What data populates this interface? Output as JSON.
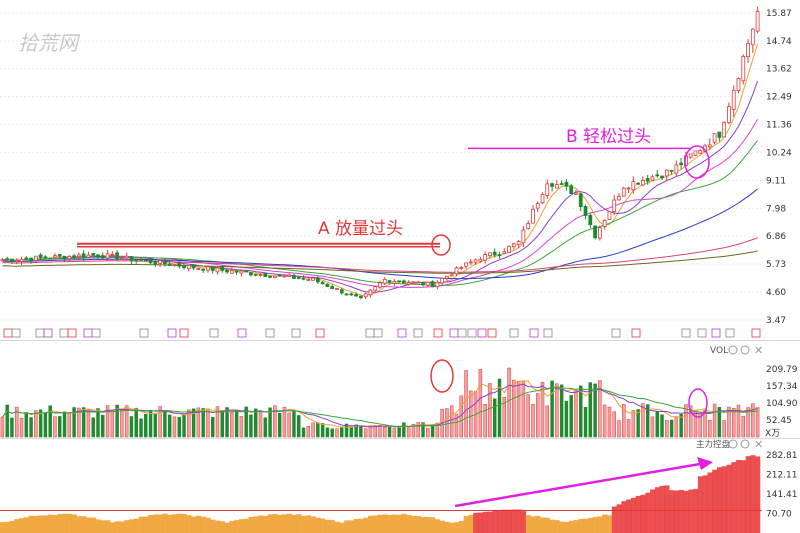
{
  "watermark": "拾荒网",
  "colors": {
    "up": "#e03a3a",
    "down": "#1f8a2e",
    "annotation_a": "#e03a3a",
    "annotation_b": "#e020e0",
    "ma5": "#f0a030",
    "ma10": "#8a3fd0",
    "ma20": "#e040d0",
    "ma30": "#3aa83a",
    "ma60": "#2a3ad0",
    "ma120": "#e0407a",
    "ma250": "#6a6a20",
    "histogram": "#f0a030",
    "histogram_strong": "#e83030"
  },
  "chart_data": [
    {
      "type": "candlestick",
      "panel": "price",
      "y_ticks": [
        "15.87",
        "14.74",
        "13.62",
        "12.49",
        "11.36",
        "10.24",
        "9.11",
        "7.98",
        "6.86",
        "5.73",
        "4.60",
        "3.47"
      ],
      "ylim": [
        3.47,
        15.87
      ],
      "key_points": {
        "x_index": [
          0,
          20,
          40,
          55,
          65,
          75,
          80,
          90,
          96,
          100,
          104,
          108,
          114,
          120,
          124,
          130,
          140,
          150,
          158
        ],
        "close": [
          5.9,
          6.1,
          5.6,
          5.3,
          5.1,
          4.3,
          5.1,
          4.9,
          5.6,
          6.0,
          6.2,
          6.6,
          9.1,
          8.6,
          6.9,
          8.9,
          9.5,
          11.0,
          15.9
        ]
      },
      "moving_averages": [
        "MA5",
        "MA10",
        "MA20",
        "MA30",
        "MA60",
        "MA120",
        "MA250"
      ],
      "annotations": [
        {
          "label": "A 放量过头",
          "color": "annotation_a",
          "level": 6.55
        },
        {
          "label": "B 轻松过头",
          "color": "annotation_b",
          "level": 10.24
        }
      ]
    },
    {
      "type": "bar",
      "panel": "volume",
      "title": "VOL",
      "y_ticks": [
        "209.79",
        "157.34",
        "104.90",
        "52.45"
      ],
      "unit": "X万",
      "ylim": [
        0,
        262
      ]
    },
    {
      "type": "bar",
      "panel": "main_force",
      "title": "主力控盘",
      "y_ticks": [
        "282.81",
        "212.11",
        "141.41",
        "70.70"
      ],
      "ylim": [
        0,
        300
      ]
    }
  ]
}
